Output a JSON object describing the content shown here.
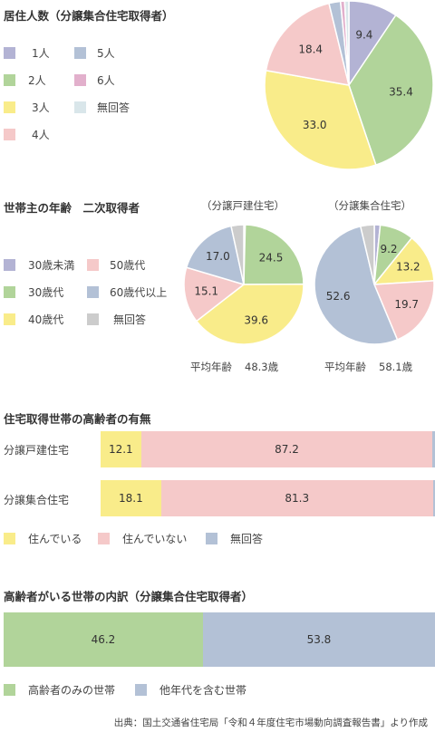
{
  "colors": {
    "p1": "#b3b3d4",
    "p2": "#b1d49a",
    "p3": "#f9ec8a",
    "p4": "#f5c9c9",
    "p5": "#b3c1d6",
    "p6": "#e2b0cc",
    "pna": "#d9e6ea",
    "gray": "#cccccc"
  },
  "section1": {
    "title": "居住人数（分譲集合住宅取得者）",
    "legend": [
      {
        "label": "1人",
        "color_key": "p1"
      },
      {
        "label": "5人",
        "color_key": "p5"
      },
      {
        "label": "2人",
        "color_key": "p2"
      },
      {
        "label": "6人",
        "color_key": "p6"
      },
      {
        "label": "3人",
        "color_key": "p3"
      },
      {
        "label": "無回答",
        "color_key": "pna"
      },
      {
        "label": "4人",
        "color_key": "p4"
      }
    ]
  },
  "section2": {
    "title": "世帯主の年齢　二次取得者",
    "legend": [
      {
        "label": "30歳未満",
        "color_key": "p1"
      },
      {
        "label": "50歳代",
        "color_key": "p4"
      },
      {
        "label": "30歳代",
        "color_key": "p2"
      },
      {
        "label": "60歳代以上",
        "color_key": "p5"
      },
      {
        "label": "40歳代",
        "color_key": "p3"
      },
      {
        "label": "無回答",
        "color_key": "gray"
      }
    ],
    "left_title": "（分譲戸建住宅）",
    "right_title": "（分譲集合住宅）",
    "left_avg_label": "平均年齢",
    "left_avg_value": "48.3歳",
    "right_avg_label": "平均年齢",
    "right_avg_value": "58.1歳"
  },
  "section3": {
    "title": "住宅取得世帯の高齢者の有無",
    "legend": [
      {
        "label": "住んでいる",
        "color_key": "p3"
      },
      {
        "label": "住んでいない",
        "color_key": "p4"
      },
      {
        "label": "無回答",
        "color_key": "p5"
      }
    ]
  },
  "section4": {
    "title": "高齢者がいる世帯の内訳（分譲集合住宅取得者）",
    "legend": [
      {
        "label": "高齢者のみの世帯",
        "color_key": "p2"
      },
      {
        "label": "他年代を含む世帯",
        "color_key": "p5"
      }
    ]
  },
  "footer": {
    "source": "出典：国土交通省住宅局「令和４年度住宅市場動向調査報告書」より作成"
  },
  "chart_data": [
    {
      "type": "pie",
      "title": "居住人数（分譲集合住宅取得者）",
      "slices": [
        {
          "label": "1人",
          "value": 9.4,
          "color_key": "p1",
          "show": true
        },
        {
          "label": "2人",
          "value": 35.4,
          "color_key": "p2",
          "show": true
        },
        {
          "label": "3人",
          "value": 33.0,
          "color_key": "p3",
          "show": true
        },
        {
          "label": "4人",
          "value": 18.4,
          "color_key": "p4",
          "show": true
        },
        {
          "label": "5人",
          "value": 2.2,
          "color_key": "p5",
          "show": false
        },
        {
          "label": "6人",
          "value": 0.8,
          "color_key": "p6",
          "show": false
        },
        {
          "label": "無回答",
          "value": 0.8,
          "color_key": "pna",
          "show": false
        }
      ]
    },
    {
      "type": "pie",
      "title": "（分譲戸建住宅）",
      "slices": [
        {
          "label": "30歳未満",
          "value": 0.4,
          "color_key": "p1",
          "show": false
        },
        {
          "label": "30歳代",
          "value": 24.5,
          "color_key": "p2",
          "show": true
        },
        {
          "label": "40歳代",
          "value": 39.6,
          "color_key": "p3",
          "show": true
        },
        {
          "label": "50歳代",
          "value": 15.1,
          "color_key": "p4",
          "show": true
        },
        {
          "label": "60歳代以上",
          "value": 17.0,
          "color_key": "p5",
          "show": true
        },
        {
          "label": "無回答",
          "value": 3.4,
          "color_key": "gray",
          "show": false
        }
      ]
    },
    {
      "type": "pie",
      "title": "（分譲集合住宅）",
      "slices": [
        {
          "label": "30歳未満",
          "value": 1.6,
          "color_key": "p1",
          "show": false
        },
        {
          "label": "30歳代",
          "value": 9.2,
          "color_key": "p2",
          "show": true
        },
        {
          "label": "40歳代",
          "value": 13.2,
          "color_key": "p3",
          "show": true
        },
        {
          "label": "50歳代",
          "value": 19.7,
          "color_key": "p4",
          "show": true
        },
        {
          "label": "60歳代以上",
          "value": 52.6,
          "color_key": "p5",
          "show": true
        },
        {
          "label": "無回答",
          "value": 3.7,
          "color_key": "gray",
          "show": false
        }
      ]
    },
    {
      "type": "bar",
      "title": "住宅取得世帯の高齢者の有無",
      "orientation": "horizontal-stacked",
      "categories": [
        "分譲戸建住宅",
        "分譲集合住宅"
      ],
      "series": [
        {
          "name": "住んでいる",
          "values": [
            12.1,
            18.1
          ],
          "color_key": "p3"
        },
        {
          "name": "住んでいない",
          "values": [
            87.2,
            81.3
          ],
          "color_key": "p4"
        },
        {
          "name": "無回答",
          "values": [
            0.7,
            0.6
          ],
          "color_key": "p5"
        }
      ]
    },
    {
      "type": "bar",
      "title": "高齢者がいる世帯の内訳（分譲集合住宅取得者）",
      "orientation": "horizontal-stacked",
      "categories": [
        ""
      ],
      "series": [
        {
          "name": "高齢者のみの世帯",
          "values": [
            46.2
          ],
          "color_key": "p2"
        },
        {
          "name": "他年代を含む世帯",
          "values": [
            53.8
          ],
          "color_key": "p5"
        }
      ]
    }
  ]
}
